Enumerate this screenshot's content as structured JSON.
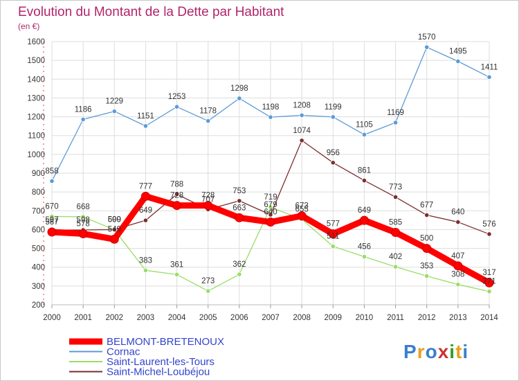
{
  "chart_data": {
    "type": "line",
    "title": "Evolution du Montant de la Dette par Habitant",
    "subtitle": "(en €)",
    "xlabel": "",
    "ylabel": "",
    "x": [
      "2000",
      "2001",
      "2002",
      "2003",
      "2004",
      "2005",
      "2006",
      "2007",
      "2008",
      "2009",
      "2010",
      "2011",
      "2012",
      "2013",
      "2014"
    ],
    "ylim": [
      200,
      1600
    ],
    "yticks": [
      200,
      300,
      400,
      500,
      600,
      700,
      800,
      900,
      1000,
      1100,
      1200,
      1300,
      1400,
      1500,
      1600
    ],
    "grid": true,
    "legend_position": "bottom-left",
    "series": [
      {
        "name": "BELMONT-BRETENOUX",
        "color": "#ff0000",
        "values": [
          587,
          578,
          549,
          777,
          728,
          728,
          663,
          640,
          673,
          577,
          649,
          585,
          500,
          407,
          317
        ]
      },
      {
        "name": "Cornac",
        "color": "#5b9bd5",
        "values": [
          858,
          1186,
          1229,
          1151,
          1253,
          1178,
          1298,
          1198,
          1208,
          1199,
          1105,
          1169,
          1570,
          1495,
          1411
        ]
      },
      {
        "name": "Saint-Laurent-les-Tours",
        "color": "#99dd66",
        "values": [
          670,
          668,
          599,
          383,
          361,
          273,
          362,
          719,
          655,
          511,
          456,
          402,
          353,
          308,
          271
        ]
      },
      {
        "name": "Saint-Michel-Loubéjou",
        "color": "#7a2e2e",
        "values": [
          597,
          598,
          600,
          649,
          788,
          707,
          753,
          679,
          1074,
          956,
          861,
          773,
          677,
          640,
          576
        ]
      }
    ]
  },
  "logo": {
    "text": "Proxiti"
  },
  "colors": {
    "title": "#b3246b",
    "grid": "#dddddd",
    "legend_label": "#3344cc"
  }
}
